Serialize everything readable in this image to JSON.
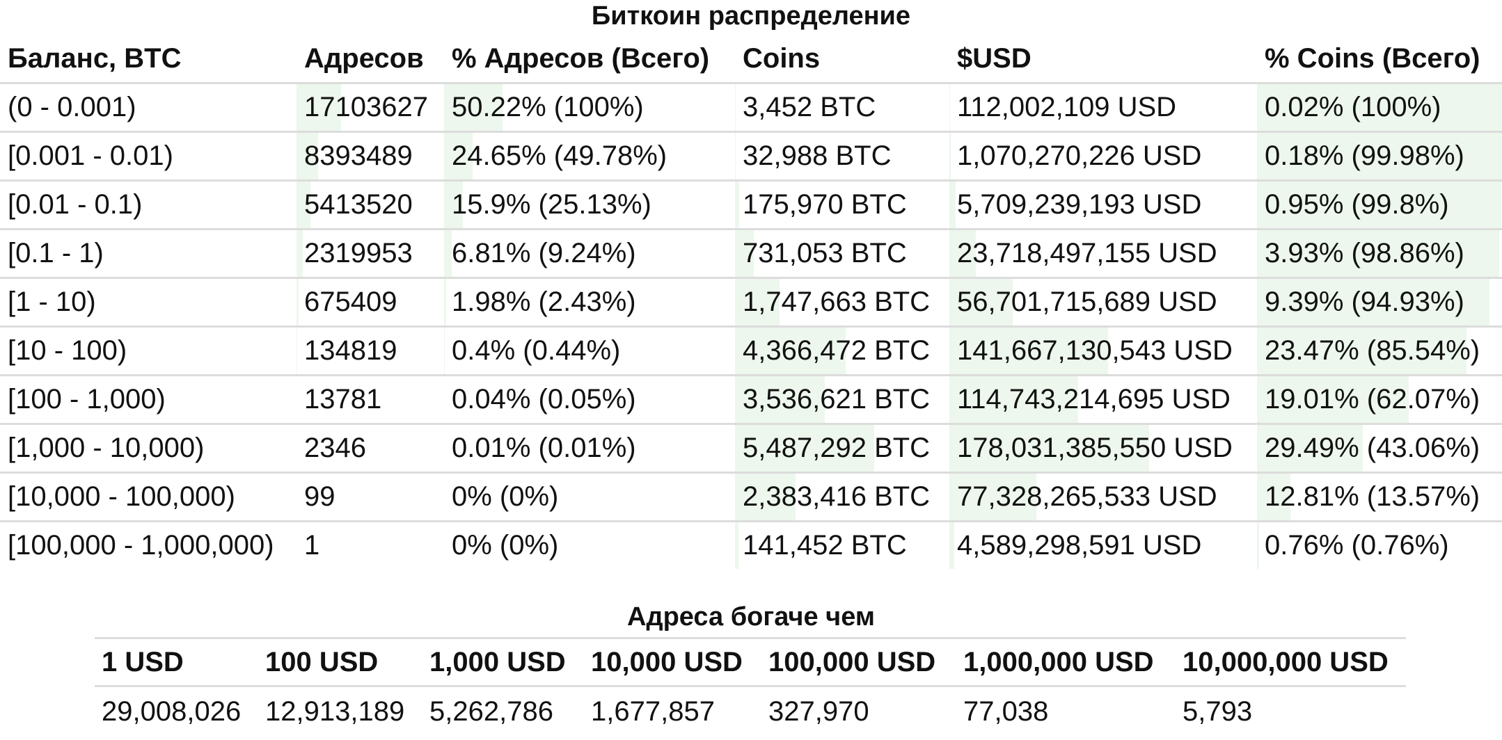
{
  "distribution": {
    "title": "Биткоин распределение",
    "headers": [
      "Баланс, BTC",
      "Адресов",
      "% Адресов (Всего)",
      "Coins",
      "$USD",
      "% Coins (Всего)"
    ],
    "rows": [
      [
        "(0 - 0.001)",
        "17103627",
        "50.22% (100%)",
        "3,452 BTC",
        "112,002,109 USD",
        "0.02% (100%)"
      ],
      [
        "[0.001 - 0.01)",
        "8393489",
        "24.65% (49.78%)",
        "32,988 BTC",
        "1,070,270,226 USD",
        "0.18% (99.98%)"
      ],
      [
        "[0.01 - 0.1)",
        "5413520",
        "15.9% (25.13%)",
        "175,970 BTC",
        "5,709,239,193 USD",
        "0.95% (99.8%)"
      ],
      [
        "[0.1 - 1)",
        "2319953",
        "6.81% (9.24%)",
        "731,053 BTC",
        "23,718,497,155 USD",
        "3.93% (98.86%)"
      ],
      [
        "[1 - 10)",
        "675409",
        "1.98% (2.43%)",
        "1,747,663 BTC",
        "56,701,715,689 USD",
        "9.39% (94.93%)"
      ],
      [
        "[10 - 100)",
        "134819",
        "0.4% (0.44%)",
        "4,366,472 BTC",
        "141,667,130,543 USD",
        "23.47% (85.54%)"
      ],
      [
        "[100 - 1,000)",
        "13781",
        "0.04% (0.05%)",
        "3,536,621 BTC",
        "114,743,214,695 USD",
        "19.01% (62.07%)"
      ],
      [
        "[1,000 - 10,000)",
        "2346",
        "0.01% (0.01%)",
        "5,487,292 BTC",
        "178,031,385,550 USD",
        "29.49% (43.06%)"
      ],
      [
        "[10,000 - 100,000)",
        "99",
        "0% (0%)",
        "2,383,416 BTC",
        "77,328,265,533 USD",
        "12.81% (13.57%)"
      ],
      [
        "[100,000 - 1,000,000)",
        "1",
        "0% (0%)",
        "141,452 BTC",
        "4,589,298,591 USD",
        "0.76% (0.76%)"
      ]
    ],
    "address_share": [
      0.5022,
      0.2465,
      0.159,
      0.0681,
      0.0198,
      0.004,
      0.0004,
      0.0001,
      0,
      0
    ],
    "address_cumulative": [
      1.0,
      0.4978,
      0.2513,
      0.0924,
      0.0243,
      0.0044,
      0.0005,
      0.0001,
      0,
      0
    ],
    "coin_share": [
      0.0002,
      0.0018,
      0.0095,
      0.0393,
      0.0939,
      0.2347,
      0.1901,
      0.2949,
      0.1281,
      0.0076
    ],
    "coin_cumulative": [
      1.0,
      0.9998,
      0.998,
      0.9886,
      0.9493,
      0.8554,
      0.6207,
      0.4306,
      0.1357,
      0.0076
    ],
    "bar_color": "#edf7ed"
  },
  "richer": {
    "title": "Адреса богаче чем",
    "headers": [
      "1 USD",
      "100 USD",
      "1,000 USD",
      "10,000 USD",
      "100,000 USD",
      "1,000,000 USD",
      "10,000,000 USD"
    ],
    "values": [
      "29,008,026",
      "12,913,189",
      "5,262,786",
      "1,677,857",
      "327,970",
      "77,038",
      "5,793"
    ]
  }
}
